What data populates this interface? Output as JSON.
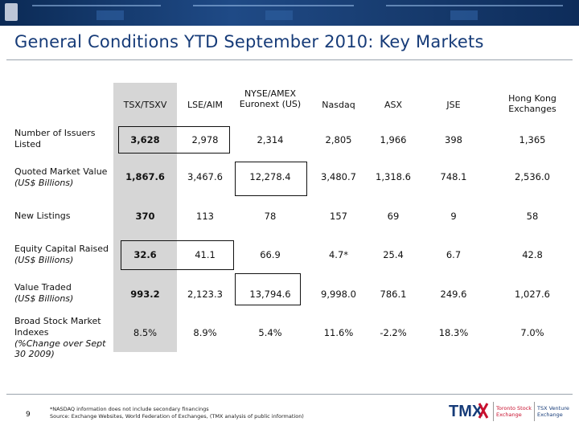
{
  "title": "General Conditions YTD September 2010:  Key Markets",
  "columns": [
    "TSX/TSXV",
    "LSE/AIM",
    "NYSE/AMEX Euronext (US)",
    "Nasdaq",
    "ASX",
    "JSE",
    "Hong Kong Exchanges"
  ],
  "rows": [
    {
      "label": "Number of Issuers Listed",
      "sub": "",
      "values": [
        "3,628",
        "2,978",
        "2,314",
        "2,805",
        "1,966",
        "398",
        "1,365"
      ]
    },
    {
      "label": "Quoted Market Value",
      "sub": "(US$ Billions)",
      "values": [
        "1,867.6",
        "3,467.6",
        "12,278.4",
        "3,480.7",
        "1,318.6",
        "748.1",
        "2,536.0"
      ]
    },
    {
      "label": "New Listings",
      "sub": "",
      "values": [
        "370",
        "113",
        "78",
        "157",
        "69",
        "9",
        "58"
      ]
    },
    {
      "label": "Equity Capital Raised",
      "sub": "(US$ Billions)",
      "values": [
        "32.6",
        "41.1",
        "66.9",
        "4.7*",
        "25.4",
        "6.7",
        "42.8"
      ]
    },
    {
      "label": "Value Traded",
      "sub": "(US$ Billions)",
      "values": [
        "993.2",
        "2,123.3",
        "13,794.6",
        "9,998.0",
        "786.1",
        "249.6",
        "1,027.6"
      ]
    },
    {
      "label": "Broad Stock Market Indexes",
      "sub": "(%Change over Sept 30 2009)",
      "values": [
        "8.5%",
        "8.9%",
        "5.4%",
        "11.6%",
        "-2.2%",
        "18.3%",
        "7.0%"
      ]
    }
  ],
  "footer": {
    "page": "9",
    "note1": "*NASDAQ information does not include secondary financings",
    "note2": "Source: Exchange Websites, World Federation of Exchanges, (TMX analysis of public information)"
  },
  "brand": {
    "logo": "TMX",
    "tsx": "Toronto Stock Exchange",
    "tsxv": "TSX Venture Exchange",
    "accent": "#163b78",
    "red": "#c8102e"
  }
}
